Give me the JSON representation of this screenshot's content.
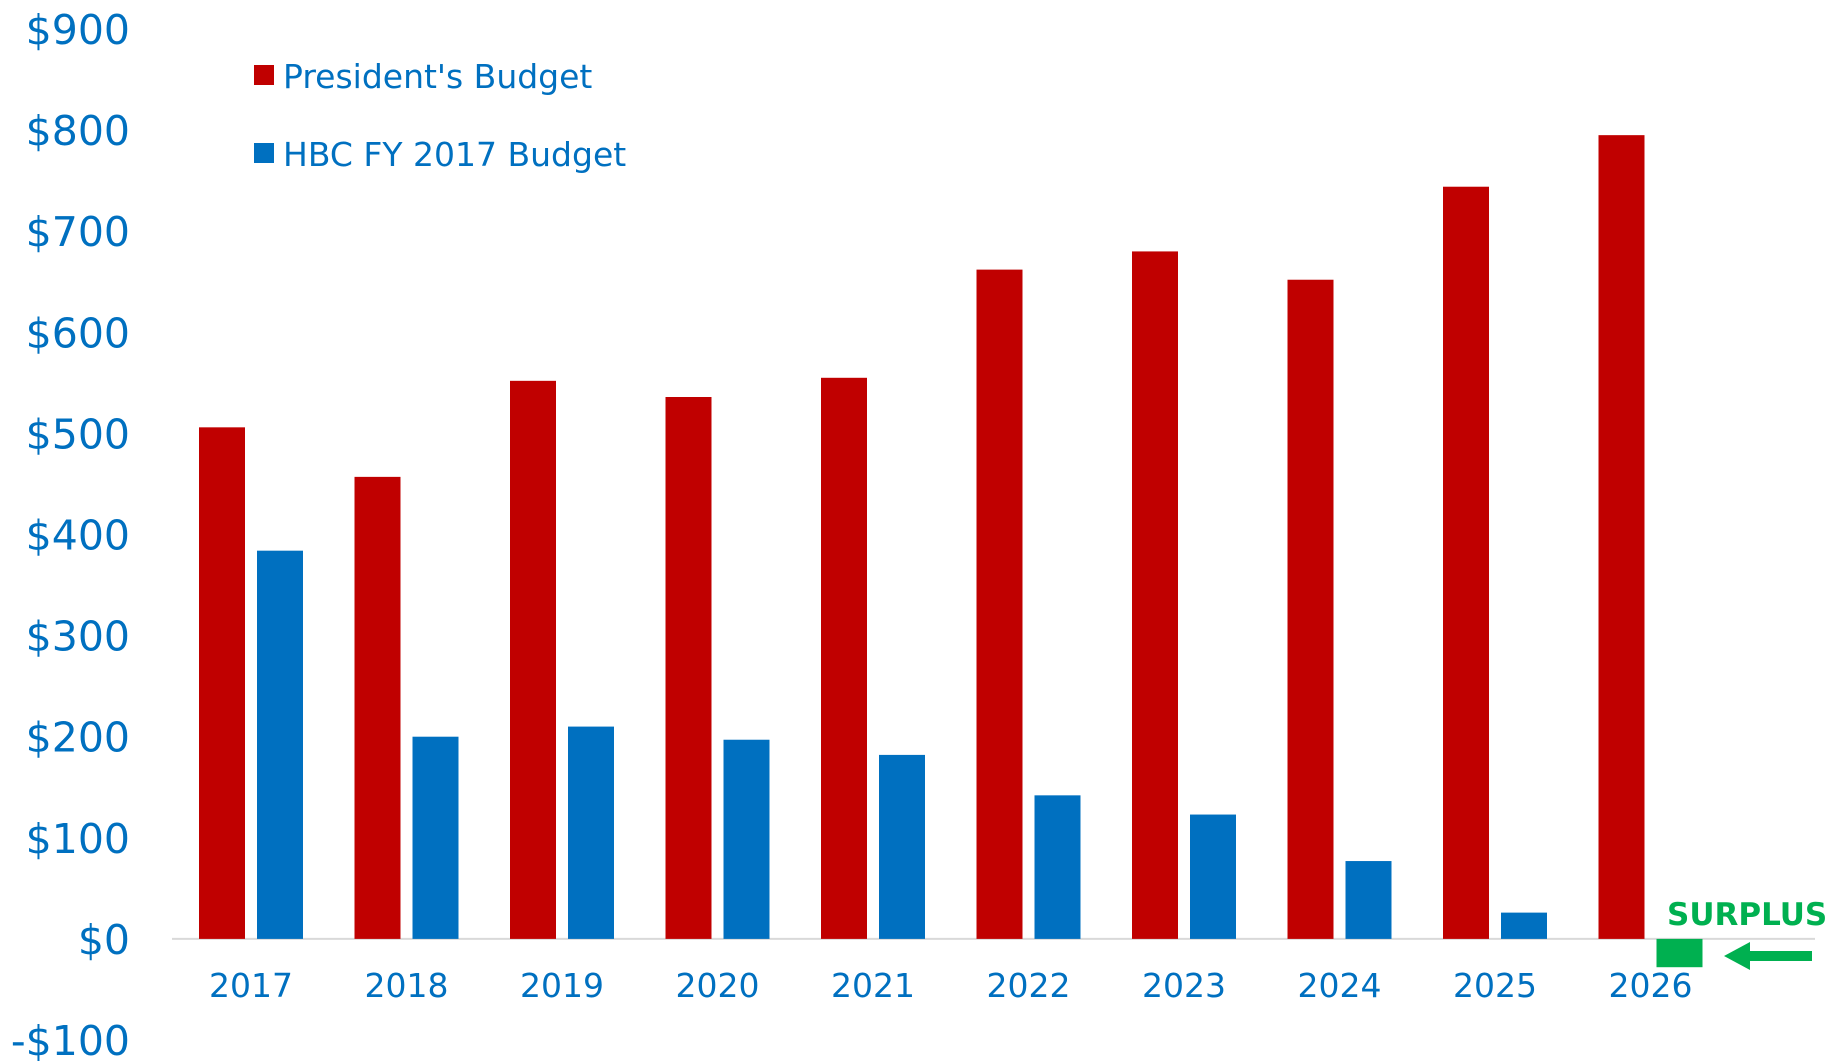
{
  "chart_data": {
    "type": "bar",
    "categories": [
      "2017",
      "2018",
      "2019",
      "2020",
      "2021",
      "2022",
      "2023",
      "2024",
      "2025",
      "2026"
    ],
    "series": [
      {
        "name": "President's Budget",
        "color": "#c00000",
        "values": [
          506,
          457,
          552,
          536,
          555,
          662,
          680,
          652,
          744,
          795
        ]
      },
      {
        "name": "HBC FY 2017 Budget",
        "color": "#0070c0",
        "values": [
          384,
          200,
          210,
          197,
          182,
          142,
          123,
          77,
          26,
          -28
        ]
      }
    ],
    "ylim": [
      -100,
      900
    ],
    "ytick_values": [
      900,
      800,
      700,
      600,
      500,
      400,
      300,
      200,
      100,
      0,
      -100
    ],
    "ytick_labels": [
      "$900",
      "$800",
      "$700",
      "$600",
      "$500",
      "$400",
      "$300",
      "$200",
      "$100",
      "$0",
      "-$100"
    ],
    "title": "",
    "xlabel": "",
    "ylabel": "",
    "grid": false,
    "legend_position": "top-left",
    "annotation": {
      "text": "SURPLUS",
      "color": "#00b050",
      "points_to": "2026"
    }
  }
}
